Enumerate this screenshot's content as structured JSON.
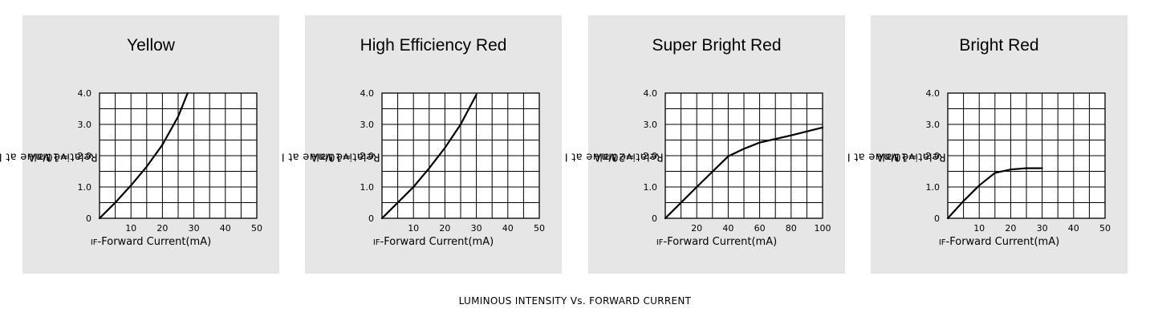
{
  "caption": "LUMINOUS INTENSITY Vs. FORWARD CURRENT",
  "chart_data": [
    {
      "type": "line",
      "title": "Yellow",
      "xlabel_prefix": "IF",
      "xlabel_rest": "-Forward Current(mA)",
      "ylabel_rest": "Relative Value at I",
      "ylabel_sub": "F",
      "ylabel_end": "=10mA",
      "xlim": [
        0,
        50
      ],
      "ylim": [
        0,
        4.0
      ],
      "xticks": [
        10,
        20,
        30,
        40,
        50
      ],
      "xtick_labels": [
        "10",
        "20",
        "30",
        "40",
        "50"
      ],
      "yticks": [
        0,
        1.0,
        2.0,
        3.0,
        4.0
      ],
      "ytick_labels": [
        "0",
        "1.0",
        "2.0",
        "3.0",
        "4.0"
      ],
      "grid": true,
      "series": [
        {
          "x": [
            0,
            5,
            10,
            15,
            20,
            25,
            28
          ],
          "y": [
            0,
            0.5,
            1.05,
            1.65,
            2.35,
            3.25,
            4.0
          ]
        }
      ]
    },
    {
      "type": "line",
      "title": "High Efficiency Red",
      "xlabel_prefix": "IF",
      "xlabel_rest": "-Forward Current(mA)",
      "ylabel_rest": "Relative Value at I",
      "ylabel_sub": "F",
      "ylabel_end": "=10mA",
      "xlim": [
        0,
        50
      ],
      "ylim": [
        0,
        4.0
      ],
      "xticks": [
        10,
        20,
        30,
        40,
        50
      ],
      "xtick_labels": [
        "10",
        "20",
        "30",
        "40",
        "50"
      ],
      "yticks": [
        0,
        1.0,
        2.0,
        3.0,
        4.0
      ],
      "ytick_labels": [
        "0",
        "1.0",
        "2.0",
        "3.0",
        "4.0"
      ],
      "grid": true,
      "series": [
        {
          "x": [
            0,
            5,
            10,
            15,
            20,
            25,
            30
          ],
          "y": [
            0,
            0.5,
            1.0,
            1.6,
            2.25,
            3.0,
            3.95
          ]
        }
      ]
    },
    {
      "type": "line",
      "title": "Super Bright Red",
      "xlabel_prefix": "IF",
      "xlabel_rest": "-Forward Current(mA)",
      "ylabel_rest": "Relative Value at I",
      "ylabel_sub": "F",
      "ylabel_end": "=20mA",
      "xlim": [
        0,
        100
      ],
      "ylim": [
        0,
        4.0
      ],
      "xticks": [
        20,
        40,
        60,
        80,
        100
      ],
      "xtick_labels": [
        "20",
        "40",
        "60",
        "80",
        "100"
      ],
      "yticks": [
        0,
        1.0,
        2.0,
        3.0,
        4.0
      ],
      "ytick_labels": [
        "0",
        "1.0",
        "2.0",
        "3.0",
        "4.0"
      ],
      "grid": true,
      "series": [
        {
          "x": [
            0,
            20,
            40,
            50,
            60,
            80,
            100
          ],
          "y": [
            0,
            1.0,
            1.98,
            2.22,
            2.42,
            2.65,
            2.9
          ]
        }
      ]
    },
    {
      "type": "line",
      "title": "Bright Red",
      "xlabel_prefix": "IF",
      "xlabel_rest": "-Forward Current(mA)",
      "ylabel_rest": "Relative Value at I",
      "ylabel_sub": "F",
      "ylabel_end": "=10mA",
      "xlim": [
        0,
        50
      ],
      "ylim": [
        0,
        4.0
      ],
      "xticks": [
        10,
        20,
        30,
        40,
        50
      ],
      "xtick_labels": [
        "10",
        "20",
        "30",
        "40",
        "50"
      ],
      "yticks": [
        0,
        1.0,
        2.0,
        3.0,
        4.0
      ],
      "ytick_labels": [
        "0",
        "1.0",
        "2.0",
        "3.0",
        "4.0"
      ],
      "grid": true,
      "series": [
        {
          "x": [
            0,
            5,
            10,
            15,
            20,
            25,
            30
          ],
          "y": [
            0,
            0.55,
            1.05,
            1.45,
            1.56,
            1.6,
            1.6
          ]
        }
      ]
    }
  ]
}
